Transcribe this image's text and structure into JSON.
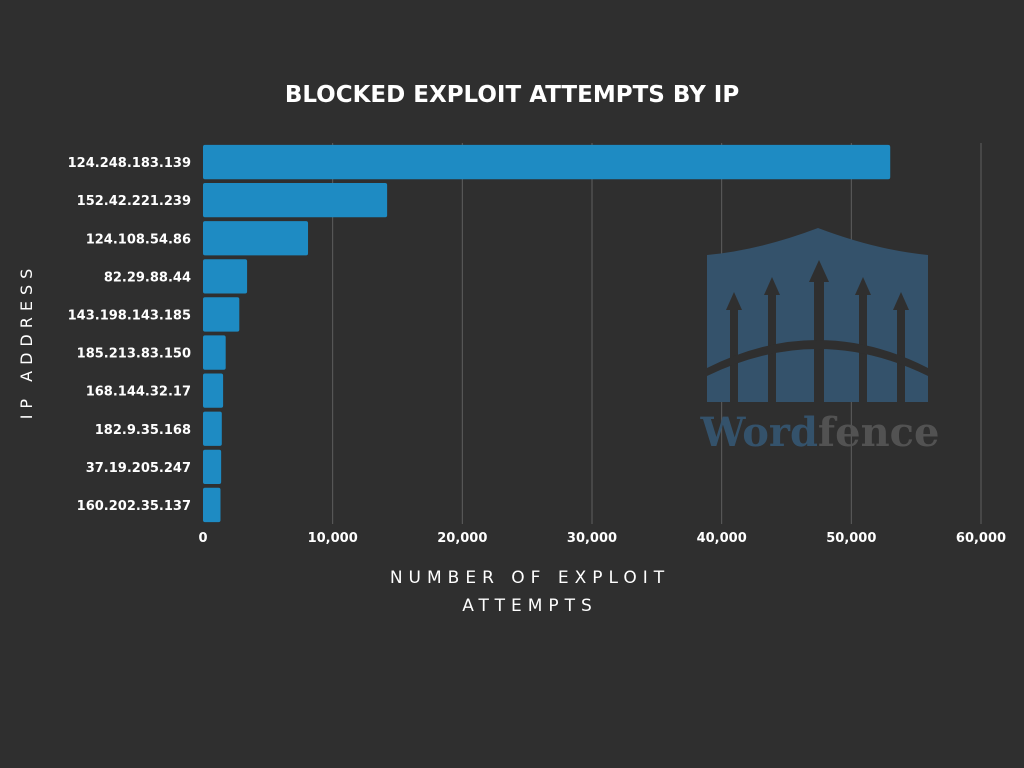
{
  "chart_data": {
    "type": "bar",
    "orientation": "horizontal",
    "title": "BLOCKED EXPLOIT ATTEMPTS BY IP",
    "xlabel_lines": [
      "NUMBER OF EXPLOIT",
      "ATTEMPTS"
    ],
    "ylabel": "IP ADDRESS",
    "categories": [
      "124.248.183.139",
      "152.42.221.239",
      "124.108.54.86",
      "82.29.88.44",
      "143.198.143.185",
      "185.213.83.150",
      "168.144.32.17",
      "182.9.35.168",
      "37.19.205.247",
      "160.202.35.137"
    ],
    "values": [
      53000,
      14200,
      8100,
      3400,
      2800,
      1750,
      1550,
      1450,
      1400,
      1350
    ],
    "x_ticks": [
      0,
      10000,
      20000,
      30000,
      40000,
      50000,
      60000
    ],
    "x_tick_labels": [
      "0",
      "10,000",
      "20,000",
      "30,000",
      "40,000",
      "50,000",
      "60,000"
    ],
    "xlim": [
      0,
      60000
    ],
    "grid": "vertical",
    "bar_color": "#1e8bc3"
  },
  "watermark": {
    "word_part1": "Word",
    "word_part2": "fence",
    "color_part1": "#34526b",
    "color_part2": "#525252",
    "icon": "wordfence-gate-logo"
  }
}
